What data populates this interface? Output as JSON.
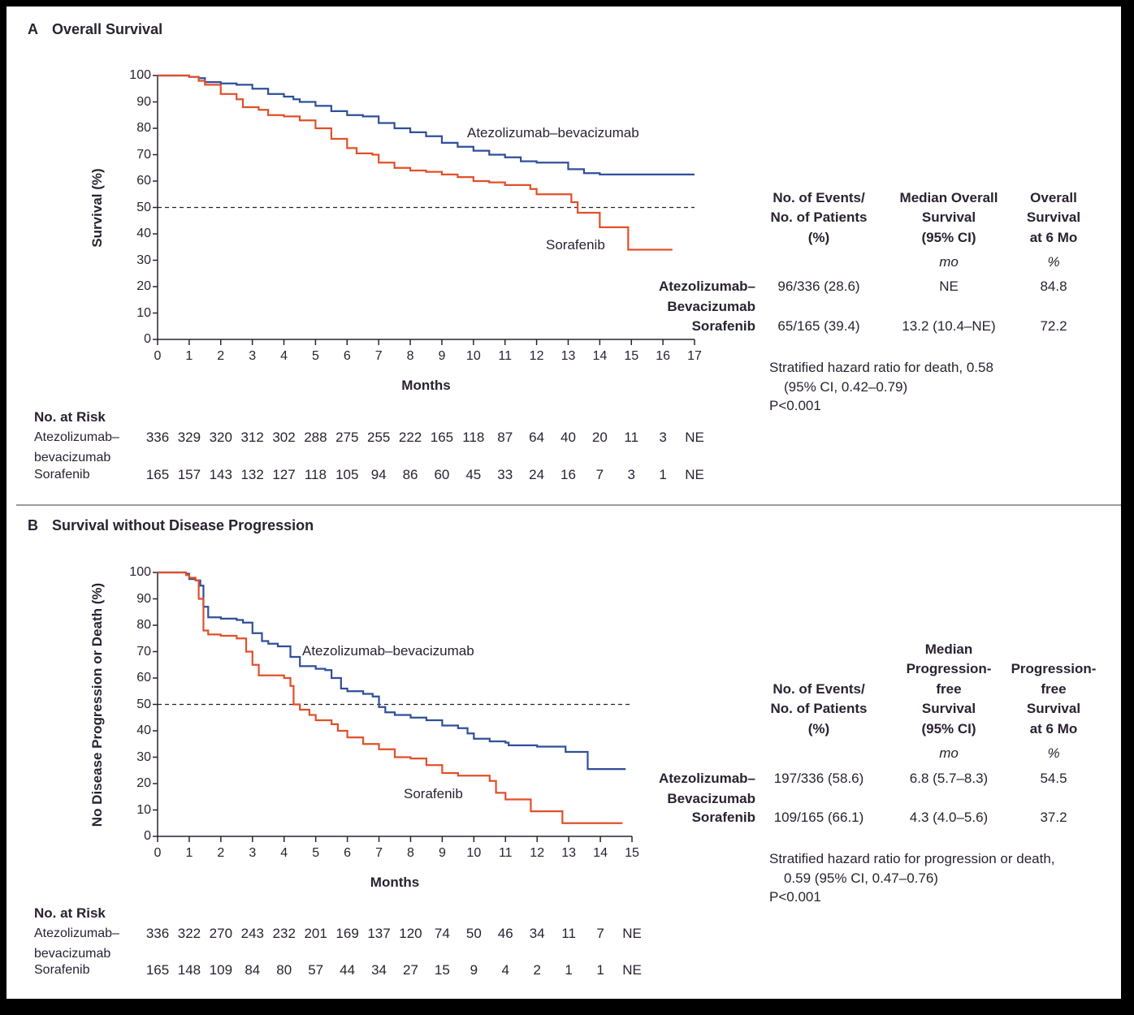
{
  "colors": {
    "atezolizumab_bevacizumab": "#2f4f9a",
    "sorafenib": "#e0502a",
    "text": "#2a2232",
    "reference_line": "#2a2232"
  },
  "panels": [
    {
      "letter": "A",
      "title": "Overall Survival",
      "risk": {
        "heading": "No. at Risk",
        "rows": [
          {
            "label": "Atezolizumab–\nbevacizumab",
            "values": [
              "336",
              "329",
              "320",
              "312",
              "302",
              "288",
              "275",
              "255",
              "222",
              "165",
              "118",
              "87",
              "64",
              "40",
              "20",
              "11",
              "3",
              "NE"
            ]
          },
          {
            "label": "Sorafenib",
            "values": [
              "165",
              "157",
              "143",
              "132",
              "127",
              "118",
              "105",
              "94",
              "86",
              "60",
              "45",
              "33",
              "24",
              "16",
              "7",
              "3",
              "1",
              "NE"
            ]
          }
        ]
      },
      "table": {
        "headers": [
          "No. of Events/\nNo. of Patients\n(%)",
          "Median Overall\nSurvival\n(95% CI)",
          "Overall\nSurvival\nat 6 Mo"
        ],
        "units": [
          "",
          "mo",
          "%"
        ],
        "rows": [
          {
            "label": "Atezolizumab–\nBevacizumab",
            "values": [
              "96/336 (28.6)",
              "NE",
              "84.8"
            ]
          },
          {
            "label": "Sorafenib",
            "values": [
              "65/165 (39.4)",
              "13.2 (10.4–NE)",
              "72.2"
            ]
          }
        ],
        "footnote": [
          "Stratified hazard ratio for death, 0.58",
          "(95% CI, 0.42–0.79)",
          "P<0.001"
        ]
      }
    },
    {
      "letter": "B",
      "title": "Survival without Disease Progression",
      "risk": {
        "heading": "No. at Risk",
        "rows": [
          {
            "label": "Atezolizumab–\nbevacizumab",
            "values": [
              "336",
              "322",
              "270",
              "243",
              "232",
              "201",
              "169",
              "137",
              "120",
              "74",
              "50",
              "46",
              "34",
              "11",
              "7",
              "NE"
            ]
          },
          {
            "label": "Sorafenib",
            "values": [
              "165",
              "148",
              "109",
              "84",
              "80",
              "57",
              "44",
              "34",
              "27",
              "15",
              "9",
              "4",
              "2",
              "1",
              "1",
              "NE"
            ]
          }
        ]
      },
      "table": {
        "headers": [
          "No. of Events/\nNo. of Patients\n(%)",
          "Median\nProgression-\nfree\nSurvival\n(95% CI)",
          "Progression-\nfree\nSurvival\nat 6 Mo"
        ],
        "units": [
          "",
          "mo",
          "%"
        ],
        "rows": [
          {
            "label": "Atezolizumab–\nBevacizumab",
            "values": [
              "197/336 (58.6)",
              "6.8 (5.7–8.3)",
              "54.5"
            ]
          },
          {
            "label": "Sorafenib",
            "values": [
              "109/165 (66.1)",
              "4.3 (4.0–5.6)",
              "37.2"
            ]
          }
        ],
        "footnote": [
          "Stratified hazard ratio for progression or death,",
          "0.59 (95% CI, 0.47–0.76)",
          "P<0.001"
        ]
      }
    }
  ],
  "chart_data": [
    {
      "type": "line",
      "step": true,
      "xlabel": "Months",
      "ylabel": "Survival (%)",
      "xlim": [
        0,
        17
      ],
      "ylim": [
        0,
        100
      ],
      "xticks": [
        0,
        1,
        2,
        3,
        4,
        5,
        6,
        7,
        8,
        9,
        10,
        11,
        12,
        13,
        14,
        15,
        16,
        17
      ],
      "yticks": [
        0,
        10,
        20,
        30,
        40,
        50,
        60,
        70,
        80,
        90,
        100
      ],
      "reference_line_y": 50,
      "grid": false,
      "series": [
        {
          "name": "Atezolizumab–bevacizumab",
          "color": "#2f4f9a",
          "points": [
            [
              0,
              100
            ],
            [
              1,
              99.5
            ],
            [
              1.3,
              99
            ],
            [
              1.5,
              97.5
            ],
            [
              2,
              97
            ],
            [
              2.5,
              96.5
            ],
            [
              3,
              95
            ],
            [
              3.5,
              93
            ],
            [
              4,
              92
            ],
            [
              4.3,
              91
            ],
            [
              4.5,
              90
            ],
            [
              5,
              88.5
            ],
            [
              5.5,
              86.5
            ],
            [
              6,
              85
            ],
            [
              6.5,
              84.5
            ],
            [
              7,
              82
            ],
            [
              7.5,
              80
            ],
            [
              8,
              78.5
            ],
            [
              8.5,
              77
            ],
            [
              9,
              74.5
            ],
            [
              9.5,
              73
            ],
            [
              10,
              71.5
            ],
            [
              10.5,
              70
            ],
            [
              11,
              69
            ],
            [
              11.5,
              67.5
            ],
            [
              12,
              67
            ],
            [
              12.8,
              67
            ],
            [
              13,
              64.5
            ],
            [
              13.5,
              63
            ],
            [
              14,
              62.5
            ],
            [
              17,
              62.5
            ]
          ]
        },
        {
          "name": "Sorafenib",
          "color": "#e0502a",
          "points": [
            [
              0,
              100
            ],
            [
              1,
              99.5
            ],
            [
              1.3,
              98
            ],
            [
              1.5,
              96.5
            ],
            [
              2,
              93
            ],
            [
              2.5,
              91
            ],
            [
              2.7,
              88
            ],
            [
              3.2,
              87
            ],
            [
              3.5,
              85
            ],
            [
              4,
              84.5
            ],
            [
              4.5,
              83
            ],
            [
              5,
              80
            ],
            [
              5.5,
              76
            ],
            [
              6,
              72.5
            ],
            [
              6.3,
              70.5
            ],
            [
              6.8,
              70
            ],
            [
              7,
              67
            ],
            [
              7.5,
              65
            ],
            [
              8,
              64
            ],
            [
              8.5,
              63.5
            ],
            [
              9,
              62.5
            ],
            [
              9.5,
              61.5
            ],
            [
              10,
              60
            ],
            [
              10.5,
              59.5
            ],
            [
              11,
              58.5
            ],
            [
              11.5,
              58.5
            ],
            [
              11.8,
              57
            ],
            [
              12,
              55
            ],
            [
              13,
              55
            ],
            [
              13.1,
              52
            ],
            [
              13.3,
              48
            ],
            [
              13.8,
              48
            ],
            [
              14,
              42.5
            ],
            [
              14.8,
              42.5
            ],
            [
              14.9,
              34
            ],
            [
              16.3,
              34
            ]
          ]
        }
      ]
    },
    {
      "type": "line",
      "step": true,
      "xlabel": "Months",
      "ylabel": "No Disease Progression or Death (%)",
      "xlim": [
        0,
        15
      ],
      "ylim": [
        0,
        100
      ],
      "xticks": [
        0,
        1,
        2,
        3,
        4,
        5,
        6,
        7,
        8,
        9,
        10,
        11,
        12,
        13,
        14,
        15
      ],
      "yticks": [
        0,
        10,
        20,
        30,
        40,
        50,
        60,
        70,
        80,
        90,
        100
      ],
      "reference_line_y": 50,
      "grid": false,
      "series": [
        {
          "name": "Atezolizumab–bevacizumab",
          "color": "#2f4f9a",
          "points": [
            [
              0,
              100
            ],
            [
              0.9,
              99.5
            ],
            [
              1,
              97.5
            ],
            [
              1.2,
              97
            ],
            [
              1.35,
              95
            ],
            [
              1.45,
              87
            ],
            [
              1.6,
              83
            ],
            [
              2,
              82.5
            ],
            [
              2.5,
              82
            ],
            [
              2.7,
              81
            ],
            [
              3,
              77
            ],
            [
              3.3,
              74
            ],
            [
              3.5,
              73
            ],
            [
              3.8,
              72
            ],
            [
              4,
              72
            ],
            [
              4.2,
              68
            ],
            [
              4.5,
              64.5
            ],
            [
              5,
              63.5
            ],
            [
              5.3,
              63
            ],
            [
              5.5,
              60
            ],
            [
              5.8,
              56
            ],
            [
              6,
              55
            ],
            [
              6.5,
              54
            ],
            [
              6.8,
              53
            ],
            [
              7,
              49
            ],
            [
              7.2,
              47
            ],
            [
              7.5,
              46
            ],
            [
              8,
              45
            ],
            [
              8.5,
              44
            ],
            [
              9,
              42
            ],
            [
              9.5,
              41
            ],
            [
              9.8,
              39
            ],
            [
              10,
              37
            ],
            [
              10.5,
              36
            ],
            [
              11,
              35.5
            ],
            [
              11.1,
              34.5
            ],
            [
              12,
              34
            ],
            [
              12.5,
              34
            ],
            [
              12.9,
              32
            ],
            [
              13.5,
              32
            ],
            [
              13.6,
              25.5
            ],
            [
              14.8,
              25.5
            ]
          ]
        },
        {
          "name": "Sorafenib",
          "color": "#e0502a",
          "points": [
            [
              0,
              100
            ],
            [
              0.9,
              99
            ],
            [
              1,
              98
            ],
            [
              1.2,
              97
            ],
            [
              1.3,
              90
            ],
            [
              1.45,
              78
            ],
            [
              1.6,
              76.5
            ],
            [
              2,
              76
            ],
            [
              2.5,
              75
            ],
            [
              2.8,
              70
            ],
            [
              3,
              65
            ],
            [
              3.2,
              61
            ],
            [
              4,
              60
            ],
            [
              4.2,
              57
            ],
            [
              4.3,
              50
            ],
            [
              4.5,
              48
            ],
            [
              4.8,
              46
            ],
            [
              5,
              44
            ],
            [
              5.5,
              42.5
            ],
            [
              5.7,
              40
            ],
            [
              6,
              37.5
            ],
            [
              6.5,
              35
            ],
            [
              7,
              33
            ],
            [
              7.5,
              30
            ],
            [
              8,
              29.5
            ],
            [
              8.5,
              27
            ],
            [
              9,
              24
            ],
            [
              9.5,
              23
            ],
            [
              10.4,
              23
            ],
            [
              10.5,
              21
            ],
            [
              10.7,
              16.5
            ],
            [
              11,
              14
            ],
            [
              11.8,
              14
            ],
            [
              11.8,
              9.5
            ],
            [
              12.8,
              9.5
            ],
            [
              12.8,
              5
            ],
            [
              14.7,
              5
            ]
          ]
        }
      ]
    }
  ]
}
